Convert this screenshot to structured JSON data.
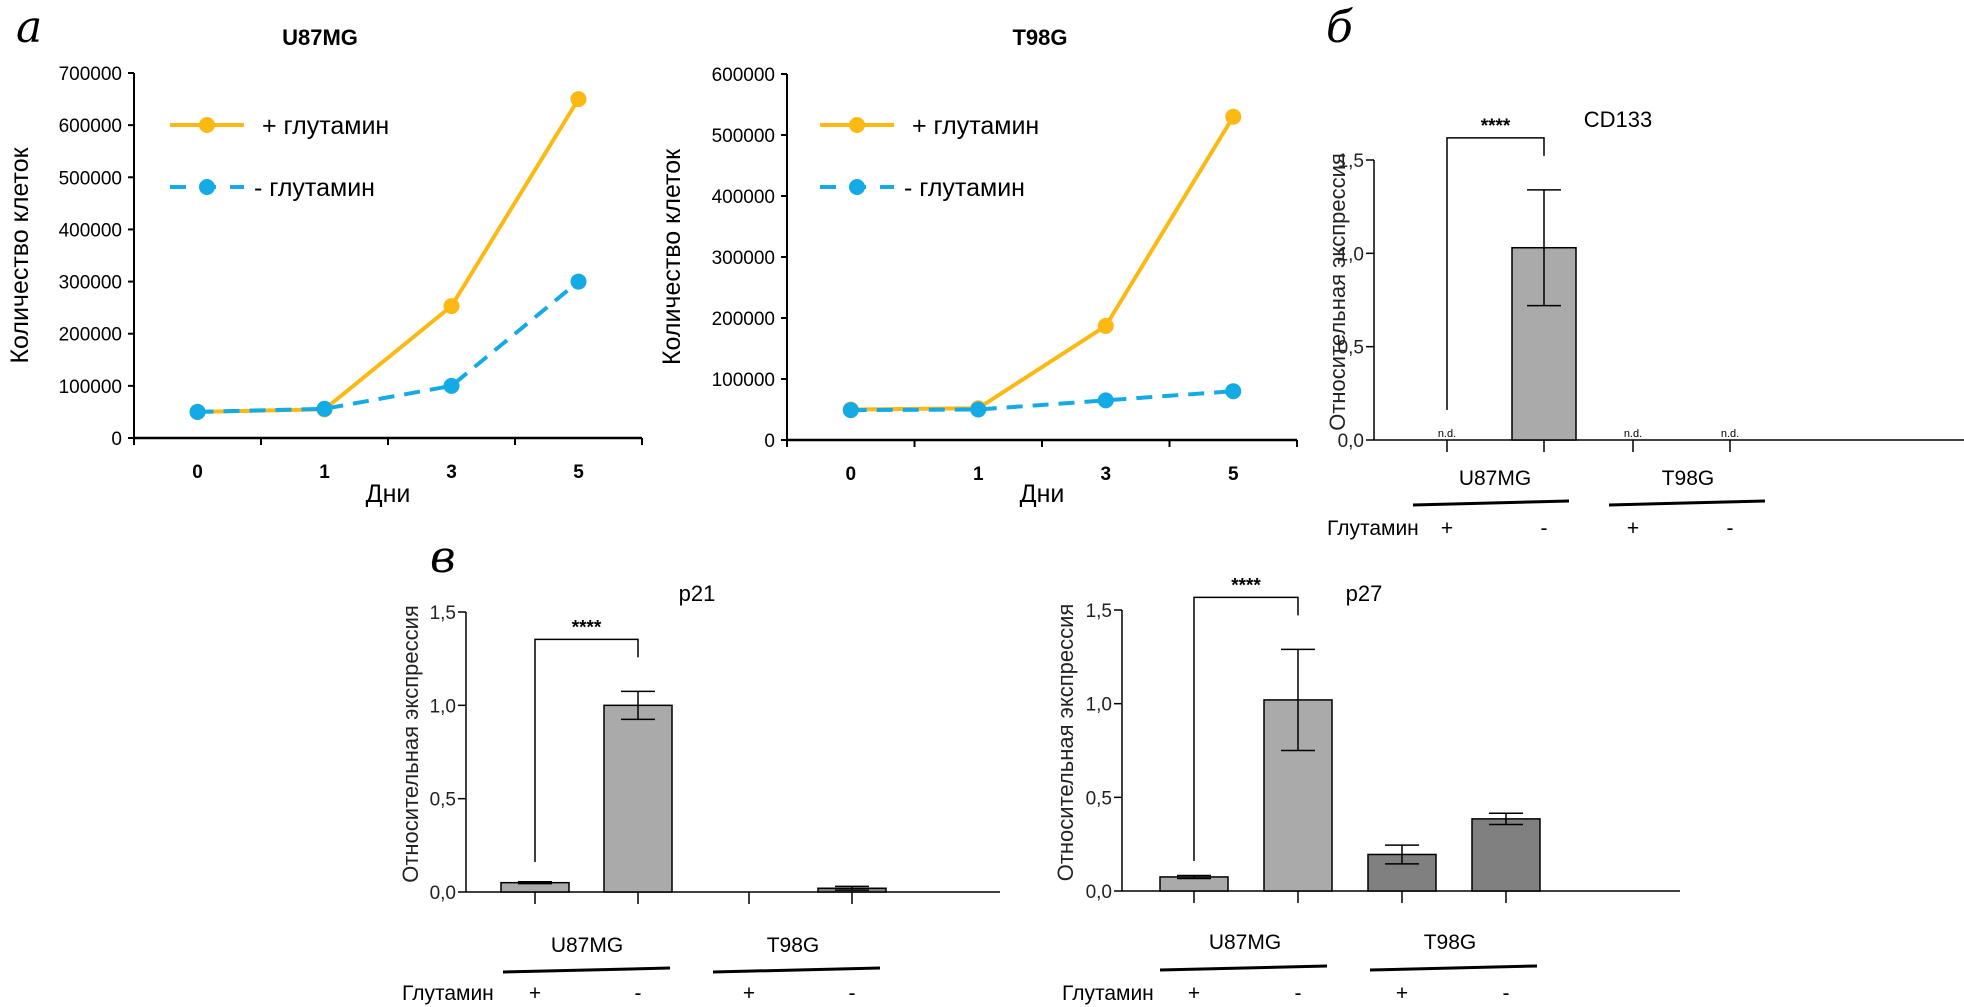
{
  "panels": {
    "a": "а",
    "b": "б",
    "c": "в"
  },
  "colors": {
    "plus_glutamine": "#FDB913",
    "minus_glutamine": "#14AAE6",
    "bar_u87mg": "#AAAAAA",
    "bar_t98g": "#808080"
  },
  "chart_data": [
    {
      "id": "u87mg-growth",
      "type": "line",
      "title": "U87MG",
      "xlabel": "Дни",
      "ylabel": "Количество клеток",
      "categories": [
        "0",
        "1",
        "3",
        "5"
      ],
      "ylim": [
        0,
        700000
      ],
      "yticks": [
        "0",
        "100000",
        "200000",
        "300000",
        "400000",
        "500000",
        "600000",
        "700000"
      ],
      "legend_position": "top-left",
      "series": [
        {
          "name": "+ глутамин",
          "style": "solid",
          "values": [
            50000,
            55000,
            253000,
            650000
          ]
        },
        {
          "name": "- глутамин",
          "style": "dashed",
          "values": [
            50000,
            56000,
            100000,
            300000
          ]
        }
      ]
    },
    {
      "id": "t98g-growth",
      "type": "line",
      "title": "T98G",
      "xlabel": "Дни",
      "ylabel": "Количество клеток",
      "categories": [
        "0",
        "1",
        "3",
        "5"
      ],
      "ylim": [
        0,
        600000
      ],
      "yticks": [
        "0",
        "100000",
        "200000",
        "300000",
        "400000",
        "500000",
        "600000"
      ],
      "legend_position": "top-left",
      "series": [
        {
          "name": "+ глутамин",
          "style": "solid",
          "values": [
            50000,
            52000,
            187000,
            530000
          ]
        },
        {
          "name": "- глутамин",
          "style": "dashed",
          "values": [
            49000,
            50000,
            65000,
            80000
          ]
        }
      ]
    },
    {
      "id": "cd133",
      "type": "bar",
      "title": "CD133",
      "ylabel": "Относительная экспрессия",
      "ylim": [
        0,
        1.5
      ],
      "yticks": [
        "0,0",
        "0,5",
        "1,0",
        "1,5"
      ],
      "groups": [
        "U87MG",
        "T98G"
      ],
      "row_label": "Глутамин",
      "conditions": [
        "+",
        "-",
        "+",
        "-"
      ],
      "values": [
        null,
        1.03,
        null,
        null
      ],
      "errors": [
        null,
        0.31,
        null,
        null
      ],
      "not_detected_label": "n.d.",
      "not_detected": [
        true,
        false,
        true,
        true
      ],
      "significance": {
        "from": 0,
        "to": 1,
        "label": "****"
      }
    },
    {
      "id": "p21",
      "type": "bar",
      "title": "p21",
      "ylabel": "Относительная экспрессия",
      "ylim": [
        0,
        1.5
      ],
      "yticks": [
        "0,0",
        "0,5",
        "1,0",
        "1,5"
      ],
      "groups": [
        "U87MG",
        "T98G"
      ],
      "row_label": "Глутамин",
      "conditions": [
        "+",
        "-",
        "+",
        "-"
      ],
      "values": [
        0.05,
        1.0,
        0.0,
        0.02
      ],
      "errors": [
        0.005,
        0.075,
        0.0,
        0.01
      ],
      "significance": {
        "from": 0,
        "to": 1,
        "label": "****"
      }
    },
    {
      "id": "p27",
      "type": "bar",
      "title": "p27",
      "ylabel": "Относительная экспрессия",
      "ylim": [
        0,
        1.5
      ],
      "yticks": [
        "0,0",
        "0,5",
        "1,0",
        "1,5"
      ],
      "groups": [
        "U87MG",
        "T98G"
      ],
      "row_label": "Глутамин",
      "conditions": [
        "+",
        "-",
        "+",
        "-"
      ],
      "values": [
        0.075,
        1.02,
        0.195,
        0.385
      ],
      "errors": [
        0.008,
        0.27,
        0.05,
        0.03
      ],
      "significance": {
        "from": 0,
        "to": 1,
        "label": "****"
      }
    }
  ]
}
